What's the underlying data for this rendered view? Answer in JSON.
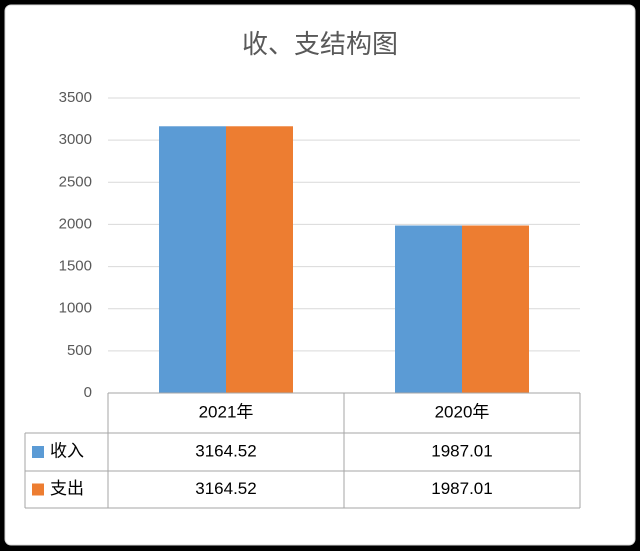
{
  "chart_data": {
    "type": "bar",
    "title": "收、支结构图",
    "categories": [
      "2021年",
      "2020年"
    ],
    "series": [
      {
        "name": "收入",
        "color": "#5b9bd5",
        "values": [
          3164.52,
          1987.01
        ]
      },
      {
        "name": "支出",
        "color": "#ed7d31",
        "values": [
          3164.52,
          1987.01
        ]
      }
    ],
    "ylim": [
      0,
      3500
    ],
    "yticks": [
      0,
      500,
      1000,
      1500,
      2000,
      2500,
      3000,
      3500
    ],
    "grid": true
  }
}
